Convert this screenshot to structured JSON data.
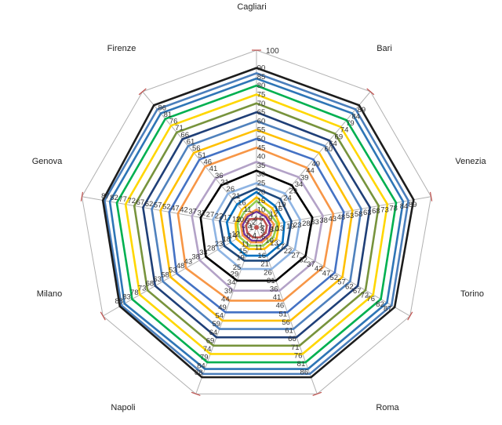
{
  "chart_data": {
    "type": "radar",
    "axes": [
      "Cagliari",
      "Bari",
      "Venezia",
      "Torino",
      "Roma",
      "Napoli",
      "Milano",
      "Genova",
      "Firenze"
    ],
    "axis_range": [
      0,
      100
    ],
    "axis_scale_top_label": "100",
    "grid": true,
    "legend": "none",
    "series": [
      {
        "color": "#c0504d",
        "values": [
          5,
          6,
          6,
          6,
          6,
          6,
          6,
          6,
          6
        ]
      },
      {
        "color": "#7030a0",
        "values": [
          9,
          8,
          8,
          8,
          8,
          8,
          8,
          8,
          8
        ]
      },
      {
        "color": "#f79646",
        "values": [
          10,
          9,
          10,
          9,
          9,
          9,
          9,
          9,
          9
        ]
      },
      {
        "color": "#92d050",
        "values": [
          15,
          11,
          12,
          11,
          11,
          11,
          11,
          11,
          11
        ]
      },
      {
        "color": "#ffc000",
        "values": [
          17,
          14,
          13,
          13,
          13,
          13,
          13,
          12,
          13
        ]
      },
      {
        "color": "#0070c0",
        "values": [
          20,
          16,
          16,
          17,
          17,
          17,
          17,
          17,
          17
        ]
      },
      {
        "color": "#1f497d",
        "values": [
          22,
          21,
          20,
          20,
          20,
          20,
          21,
          21,
          21
        ]
      },
      {
        "color": "#8eb4e3",
        "values": [
          25,
          25,
          25,
          25,
          25,
          25,
          25,
          25,
          25
        ]
      },
      {
        "color": "#000000",
        "values": [
          32,
          31,
          32,
          32,
          32,
          32,
          33,
          32,
          31
        ]
      },
      {
        "color": "#b3a2c7",
        "values": [
          37,
          37,
          38,
          38,
          38,
          38,
          37,
          37,
          36
        ]
      },
      {
        "color": "#f79646",
        "values": [
          45,
          44,
          44,
          44,
          44,
          44,
          46,
          45,
          45
        ]
      },
      {
        "color": "#4472c4",
        "values": [
          50,
          50,
          50,
          51,
          51,
          51,
          52,
          50,
          50
        ]
      },
      {
        "color": "#ffc000",
        "values": [
          55,
          55,
          55,
          56,
          56,
          56,
          56,
          55,
          55
        ]
      },
      {
        "color": "#4f81bd",
        "values": [
          60,
          60,
          60,
          61,
          61,
          61,
          61,
          60,
          60
        ]
      },
      {
        "color": "#1f3f77",
        "values": [
          65,
          64,
          65,
          66,
          66,
          66,
          66,
          65,
          65
        ]
      },
      {
        "color": "#77933c",
        "values": [
          70,
          69,
          70,
          71,
          71,
          71,
          71,
          70,
          70
        ]
      },
      {
        "color": "#ffd700",
        "values": [
          75,
          74,
          75,
          76,
          76,
          76,
          76,
          75,
          75
        ]
      },
      {
        "color": "#00b050",
        "values": [
          80,
          79,
          80,
          81,
          81,
          81,
          81,
          80,
          80
        ]
      },
      {
        "color": "#2e75b6",
        "values": [
          84,
          84,
          84,
          85,
          85,
          85,
          86,
          84,
          84
        ]
      },
      {
        "color": "#4a7ebb",
        "values": [
          87,
          87,
          87,
          88,
          88,
          88,
          88,
          87,
          87
        ]
      },
      {
        "color": "#1d1d1d",
        "values": [
          90,
          90,
          90,
          90,
          90,
          90,
          89,
          88,
          90
        ]
      }
    ],
    "visible_labels": [
      {
        "axis": "Cagliari",
        "texts": [
          "90",
          "85",
          "80",
          "75",
          "70",
          "65",
          "60",
          "55",
          "50",
          "45",
          "40",
          "35",
          "30",
          "25",
          "20",
          "15",
          "10",
          "5",
          "1"
        ]
      },
      {
        "axis": "Bari",
        "texts": [
          "89",
          "84",
          "79",
          "74",
          "69",
          "64",
          "60",
          "49",
          "44",
          "39",
          "34",
          "29",
          "24",
          "19",
          "16",
          "12",
          "9",
          "2"
        ]
      },
      {
        "axis": "Venezia",
        "texts": [
          "89",
          "84",
          "78",
          "73",
          "68",
          "63",
          "58",
          "53",
          "48",
          "43",
          "38",
          "33",
          "28",
          "23",
          "19",
          "13",
          "10",
          "8",
          "3"
        ]
      },
      {
        "axis": "Torino",
        "texts": [
          "87",
          "82",
          "76",
          "72",
          "67",
          "62",
          "57",
          "52",
          "47",
          "42",
          "37",
          "32",
          "27",
          "22",
          "17",
          "13",
          "10",
          "6"
        ]
      },
      {
        "axis": "Roma",
        "texts": [
          "86",
          "81",
          "76",
          "71",
          "66",
          "61",
          "56",
          "51",
          "46",
          "41",
          "36",
          "31",
          "26",
          "21",
          "16",
          "11",
          "7",
          "4"
        ]
      },
      {
        "axis": "Napoli",
        "texts": [
          "88",
          "84",
          "79",
          "74",
          "69",
          "64",
          "59",
          "54",
          "49",
          "44",
          "39",
          "34",
          "29",
          "25",
          "19",
          "15",
          "11",
          "6",
          "1"
        ]
      },
      {
        "axis": "Milano",
        "texts": [
          "88",
          "83",
          "78",
          "73",
          "68",
          "63",
          "58",
          "53",
          "48",
          "43",
          "38",
          "33",
          "28",
          "23",
          "18",
          "14",
          "12",
          "7",
          "3"
        ]
      },
      {
        "axis": "Genova",
        "texts": [
          "87",
          "82",
          "77",
          "72",
          "67",
          "62",
          "57",
          "52",
          "47",
          "42",
          "37",
          "32",
          "27",
          "22",
          "17",
          "12",
          "10",
          "6",
          "2"
        ]
      },
      {
        "axis": "Firenze",
        "texts": [
          "86",
          "81",
          "76",
          "71",
          "66",
          "61",
          "56",
          "51",
          "46",
          "41",
          "36",
          "31",
          "26",
          "21",
          "16",
          "11",
          "7",
          "4"
        ]
      }
    ]
  }
}
